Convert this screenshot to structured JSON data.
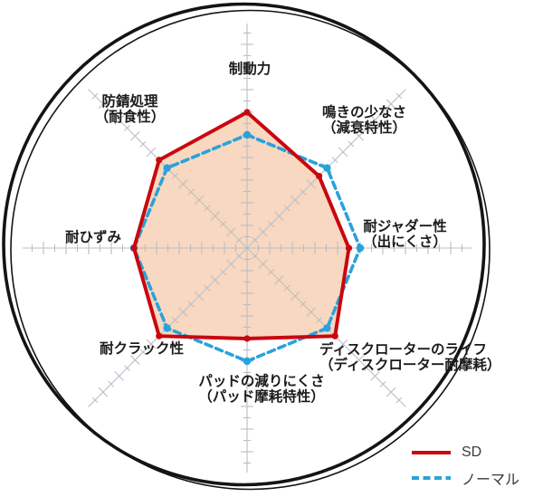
{
  "chart_data": {
    "type": "radar",
    "title": "",
    "axes": [
      {
        "id": "braking-force",
        "label": "制動力",
        "lines": [
          "制動力"
        ]
      },
      {
        "id": "squeal-resistance",
        "label": "鳴きの少なさ（減衰特性）",
        "lines": [
          "鳴きの少なさ",
          "（減衰特性）"
        ]
      },
      {
        "id": "judder-resistance",
        "label": "耐ジャダー性（出にくさ）",
        "lines": [
          "耐ジャダー性",
          "（出にくさ）"
        ]
      },
      {
        "id": "rotor-life",
        "label": "ディスクローターのライフ（ディスクローター耐摩耗）",
        "lines": [
          "ディスクローターのライフ",
          "（ディスクローター耐摩耗）"
        ]
      },
      {
        "id": "pad-wear-resistance",
        "label": "パッドの減りにくさ（パッド摩耗特性）",
        "lines": [
          "パッドの減りにくさ",
          "（パッド摩耗特性）"
        ]
      },
      {
        "id": "crack-resistance",
        "label": "耐クラック性",
        "lines": [
          "耐クラック性"
        ]
      },
      {
        "id": "distortion-resistance",
        "label": "耐ひずみ",
        "lines": [
          "耐ひずみ"
        ]
      },
      {
        "id": "rust-prevention",
        "label": "防錆処理（耐食性）",
        "lines": [
          "防錆処理",
          "（耐食性）"
        ]
      }
    ],
    "series": [
      {
        "name": "SD",
        "style": "solid",
        "color": "#c9070f",
        "values": [
          12,
          9,
          9,
          11,
          8,
          11,
          10,
          11
        ]
      },
      {
        "name": "ノーマル",
        "style": "dashed",
        "color": "#29a2db",
        "values": [
          10,
          10,
          10,
          10,
          10,
          10,
          10,
          10
        ]
      }
    ],
    "scale": {
      "tick_interval": 1,
      "normal_baseline": 10,
      "max_plotted_value": 12
    },
    "legend_position": "bottom-right",
    "grid": "radial-axes-with-ticks",
    "colors": {
      "fill": "#f8d8c0",
      "axis": "#b9bec6",
      "rotor_ring": "#141414",
      "sd_red": "#c9070f",
      "normal_blue": "#29a2db"
    }
  }
}
